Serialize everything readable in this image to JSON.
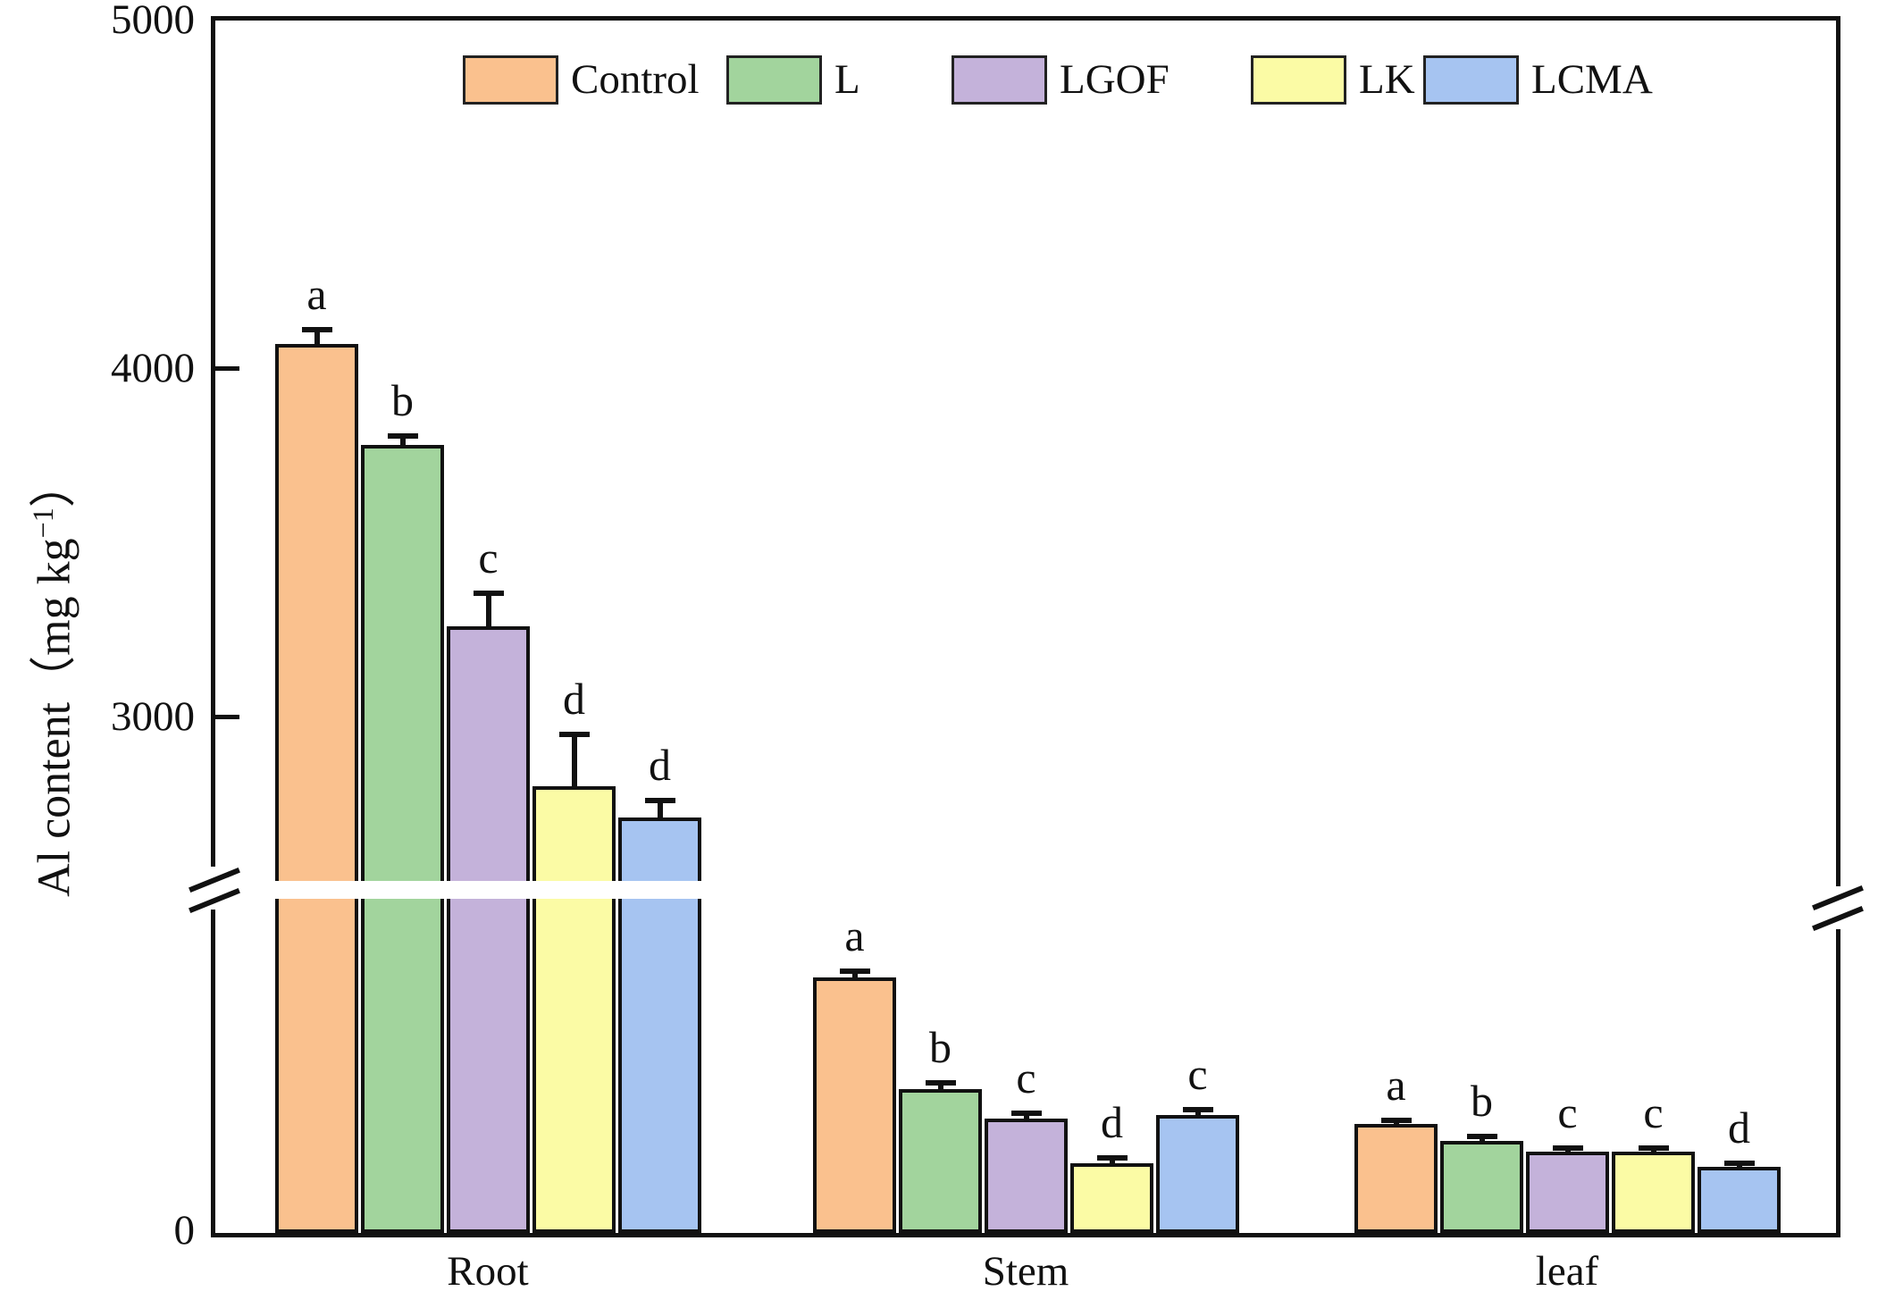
{
  "chart_data": {
    "type": "bar",
    "title": "",
    "categories": [
      "Root",
      "Stem",
      "leaf"
    ],
    "series": [
      {
        "name": "Control",
        "color": "#FAC18E",
        "values": [
          4070,
          1880,
          800
        ],
        "errors": [
          40,
          45,
          30
        ],
        "letters": [
          "a",
          "a",
          "a"
        ]
      },
      {
        "name": "L",
        "color": "#A2D49D",
        "values": [
          3780,
          1060,
          680
        ],
        "errors": [
          25,
          45,
          30
        ],
        "letters": [
          "b",
          "b",
          "b"
        ]
      },
      {
        "name": "LGOF",
        "color": "#C4B2DA",
        "values": [
          3260,
          840,
          600
        ],
        "errors": [
          95,
          40,
          25
        ],
        "letters": [
          "c",
          "c",
          "c"
        ]
      },
      {
        "name": "LK",
        "color": "#FBFBA5",
        "values": [
          2800,
          510,
          600
        ],
        "errors": [
          150,
          40,
          25
        ],
        "letters": [
          "d",
          "d",
          "c"
        ]
      },
      {
        "name": "LCMA",
        "color": "#A6C4F1",
        "values": [
          2710,
          870,
          490
        ],
        "errors": [
          50,
          40,
          25
        ],
        "letters": [
          "d",
          "c",
          "d"
        ]
      }
    ],
    "y_axis": {
      "label": "Al content（mg kg⁻¹）",
      "label_parts": {
        "prefix": "Al content（mg kg",
        "superscript": "−1",
        "suffix": "）"
      },
      "upper_ticks": [
        {
          "label": "5000",
          "value": 5000
        },
        {
          "label": "4000",
          "value": 4000
        },
        {
          "label": "3000",
          "value": 3000
        }
      ],
      "zero_tick": {
        "label": "0",
        "value": 0
      },
      "axis_break": {
        "lower_segment_range": [
          0,
          2500
        ],
        "upper_segment_range": [
          2500,
          5000
        ]
      }
    },
    "xlabel": "",
    "ylabel": "Al content（mg kg⁻¹）",
    "legend_position": "top",
    "grid": false,
    "error_bars": true,
    "significance_letters": true
  },
  "colors": {
    "axis": "#111111",
    "background": "#ffffff"
  }
}
